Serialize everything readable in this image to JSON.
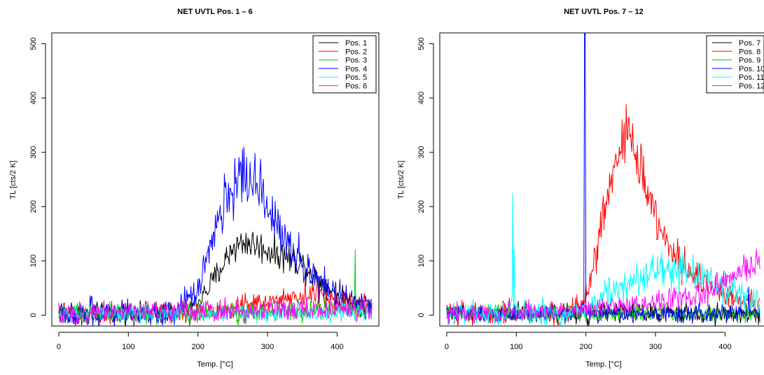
{
  "chart_data": [
    {
      "type": "line",
      "title": "NET UVTL Pos. 1 – 6",
      "xlabel": "Temp. [°C]",
      "ylabel": "TL [cts/2 K]",
      "xlim": [
        -10,
        460
      ],
      "ylim": [
        -20,
        520
      ],
      "xticks": [
        "0",
        "100",
        "200",
        "300",
        "400"
      ],
      "yticks": [
        "0",
        "100",
        "200",
        "300",
        "400",
        "500"
      ],
      "legend_position": "top-right",
      "series": [
        {
          "name": "Pos. 1",
          "color": "#000000",
          "noise": 9,
          "profile": [
            [
              0,
              3
            ],
            [
              170,
              5
            ],
            [
              190,
              12
            ],
            [
              210,
              40
            ],
            [
              230,
              80
            ],
            [
              250,
              125
            ],
            [
              270,
              135
            ],
            [
              290,
              125
            ],
            [
              310,
              115
            ],
            [
              330,
              105
            ],
            [
              350,
              95
            ],
            [
              370,
              70
            ],
            [
              390,
              50
            ],
            [
              410,
              30
            ],
            [
              440,
              15
            ],
            [
              450,
              10
            ]
          ]
        },
        {
          "name": "Pos. 2",
          "color": "#ff0000",
          "noise": 9,
          "profile": [
            [
              0,
              3
            ],
            [
              200,
              5
            ],
            [
              250,
              15
            ],
            [
              300,
              25
            ],
            [
              340,
              35
            ],
            [
              370,
              38
            ],
            [
              400,
              30
            ],
            [
              430,
              20
            ],
            [
              450,
              15
            ]
          ]
        },
        {
          "name": "Pos. 3",
          "color": "#00cd00",
          "noise": 9,
          "profile": [
            [
              0,
              3
            ],
            [
              200,
              3
            ],
            [
              300,
              5
            ],
            [
              380,
              12
            ],
            [
              420,
              12
            ],
            [
              450,
              10
            ]
          ],
          "spikes": [
            [
              426,
              120
            ]
          ]
        },
        {
          "name": "Pos. 4",
          "color": "#0000ff",
          "noise": 12,
          "profile": [
            [
              0,
              3
            ],
            [
              150,
              5
            ],
            [
              170,
              10
            ],
            [
              190,
              30
            ],
            [
              210,
              90
            ],
            [
              230,
              180
            ],
            [
              250,
              240
            ],
            [
              265,
              265
            ],
            [
              280,
              245
            ],
            [
              300,
              200
            ],
            [
              320,
              155
            ],
            [
              340,
              115
            ],
            [
              360,
              80
            ],
            [
              380,
              55
            ],
            [
              400,
              40
            ],
            [
              420,
              30
            ],
            [
              450,
              20
            ]
          ],
          "spikes": [
            [
              264,
              306
            ]
          ]
        },
        {
          "name": "Pos. 5",
          "color": "#00ffff",
          "noise": 7,
          "profile": [
            [
              0,
              3
            ],
            [
              450,
              5
            ]
          ]
        },
        {
          "name": "Pos. 6",
          "color": "#ff00ff",
          "noise": 9,
          "profile": [
            [
              0,
              3
            ],
            [
              250,
              8
            ],
            [
              350,
              12
            ],
            [
              450,
              10
            ]
          ]
        }
      ]
    },
    {
      "type": "line",
      "title": "NET UVTL Pos. 7 – 12",
      "xlabel": "Temp. [°C]",
      "ylabel": "TL [cts/2 K]",
      "xlim": [
        -10,
        460
      ],
      "ylim": [
        -20,
        520
      ],
      "xticks": [
        "0",
        "100",
        "200",
        "300",
        "400"
      ],
      "yticks": [
        "0",
        "100",
        "200",
        "300",
        "400",
        "500"
      ],
      "legend_position": "top-right",
      "series": [
        {
          "name": "Pos. 7",
          "color": "#000000",
          "noise": 9,
          "profile": [
            [
              0,
              3
            ],
            [
              450,
              3
            ]
          ]
        },
        {
          "name": "Pos. 8",
          "color": "#ff0000",
          "noise": 11,
          "profile": [
            [
              0,
              3
            ],
            [
              170,
              5
            ],
            [
              190,
              15
            ],
            [
              200,
              30
            ],
            [
              210,
              80
            ],
            [
              220,
              150
            ],
            [
              235,
              250
            ],
            [
              250,
              320
            ],
            [
              260,
              345
            ],
            [
              275,
              285
            ],
            [
              290,
              215
            ],
            [
              310,
              145
            ],
            [
              330,
              110
            ],
            [
              350,
              80
            ],
            [
              370,
              60
            ],
            [
              390,
              45
            ],
            [
              410,
              35
            ],
            [
              430,
              25
            ],
            [
              450,
              20
            ]
          ],
          "spikes": [
            [
              258,
              388
            ]
          ]
        },
        {
          "name": "Pos. 9",
          "color": "#00cd00",
          "noise": 7,
          "profile": [
            [
              0,
              3
            ],
            [
              450,
              3
            ]
          ]
        },
        {
          "name": "Pos. 10",
          "color": "#0000ff",
          "noise": 7,
          "profile": [
            [
              0,
              3
            ],
            [
              450,
              3
            ]
          ],
          "spikes": [
            [
              198,
              520
            ],
            [
              199,
              520
            ],
            [
              434,
              52
            ]
          ]
        },
        {
          "name": "Pos. 11",
          "color": "#00ffff",
          "noise": 12,
          "profile": [
            [
              0,
              3
            ],
            [
              90,
              5
            ],
            [
              170,
              5
            ],
            [
              200,
              10
            ],
            [
              220,
              30
            ],
            [
              250,
              50
            ],
            [
              280,
              65
            ],
            [
              300,
              75
            ],
            [
              320,
              85
            ],
            [
              340,
              80
            ],
            [
              360,
              70
            ],
            [
              380,
              60
            ],
            [
              400,
              50
            ],
            [
              430,
              35
            ],
            [
              450,
              25
            ]
          ],
          "spikes": [
            [
              95,
              225
            ],
            [
              97,
              120
            ]
          ]
        },
        {
          "name": "Pos. 12",
          "color": "#ff00ff",
          "noise": 9,
          "profile": [
            [
              0,
              3
            ],
            [
              200,
              8
            ],
            [
              300,
              25
            ],
            [
              350,
              35
            ],
            [
              380,
              45
            ],
            [
              400,
              60
            ],
            [
              420,
              80
            ],
            [
              440,
              95
            ],
            [
              450,
              105
            ]
          ]
        }
      ]
    }
  ]
}
